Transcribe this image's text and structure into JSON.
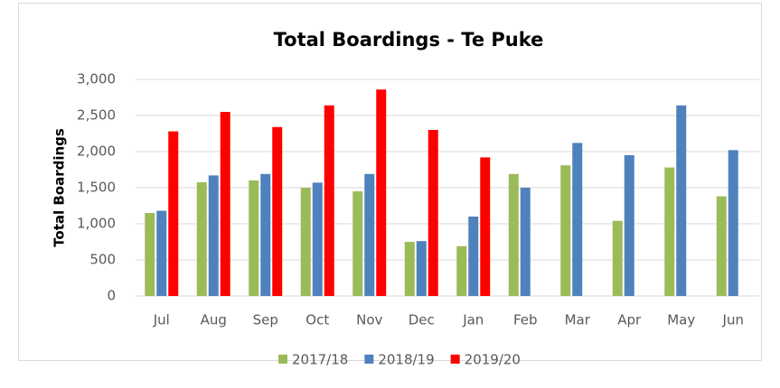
{
  "chart_data": {
    "type": "bar",
    "title": "Total Boardings - Te Puke",
    "y_label": "Total Boardings",
    "categories": [
      "Jul",
      "Aug",
      "Sep",
      "Oct",
      "Nov",
      "Dec",
      "Jan",
      "Feb",
      "Mar",
      "Apr",
      "May",
      "Jun"
    ],
    "series": [
      {
        "name": "2017/18",
        "color": "#9bbb59",
        "values": [
          1150,
          1575,
          1600,
          1500,
          1450,
          750,
          690,
          1690,
          1810,
          1040,
          1780,
          1380
        ]
      },
      {
        "name": "2018/19",
        "color": "#4f81bd",
        "values": [
          1180,
          1670,
          1690,
          1570,
          1690,
          760,
          1100,
          1500,
          2120,
          1950,
          2640,
          2020
        ]
      },
      {
        "name": "2019/20",
        "color": "#ff0000",
        "values": [
          2280,
          2550,
          2340,
          2640,
          2860,
          2300,
          1920,
          null,
          null,
          null,
          null,
          null
        ]
      }
    ],
    "ylim": [
      0,
      3000
    ],
    "yticks": [
      0,
      500,
      {
        "value": 1000,
        "label": "1,000"
      },
      {
        "value": 1500,
        "label": "1,500"
      },
      {
        "value": 2000,
        "label": "2,000"
      },
      {
        "value": 2500,
        "label": "2,500"
      },
      {
        "value": 3000,
        "label": "3,000"
      }
    ],
    "grid": true,
    "legend": "bottom"
  }
}
